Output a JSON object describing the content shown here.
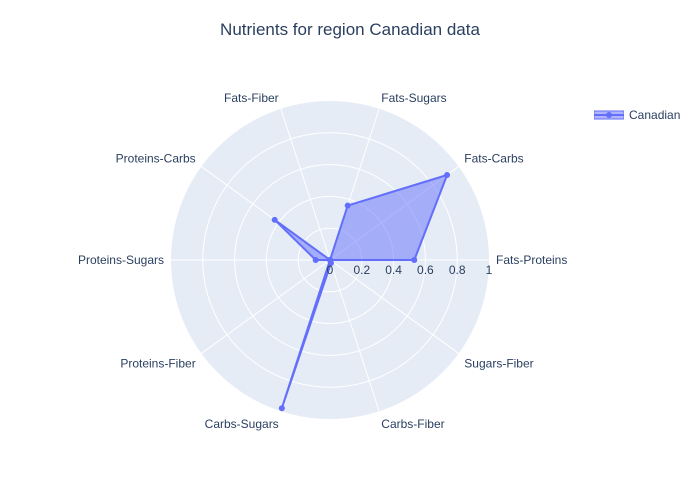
{
  "chart_data": {
    "type": "radar",
    "title": "Nutrients for region Canadian data",
    "categories": [
      "Fats-Proteins",
      "Fats-Carbs",
      "Fats-Sugars",
      "Fats-Fiber",
      "Proteins-Carbs",
      "Proteins-Sugars",
      "Proteins-Fiber",
      "Carbs-Sugars",
      "Carbs-Fiber",
      "Sugars-Fiber"
    ],
    "radial_ticks": [
      "0",
      "0.2",
      "0.4",
      "0.6",
      "0.8",
      "1"
    ],
    "radial_range": [
      0,
      1
    ],
    "series": [
      {
        "name": "Canadian",
        "values": [
          0.53,
          0.91,
          0.36,
          0.0,
          0.43,
          0.09,
          0.0,
          0.98,
          0.02,
          0.0
        ],
        "color": "#636efa"
      }
    ],
    "legend_position": "top-right",
    "grid": true
  }
}
